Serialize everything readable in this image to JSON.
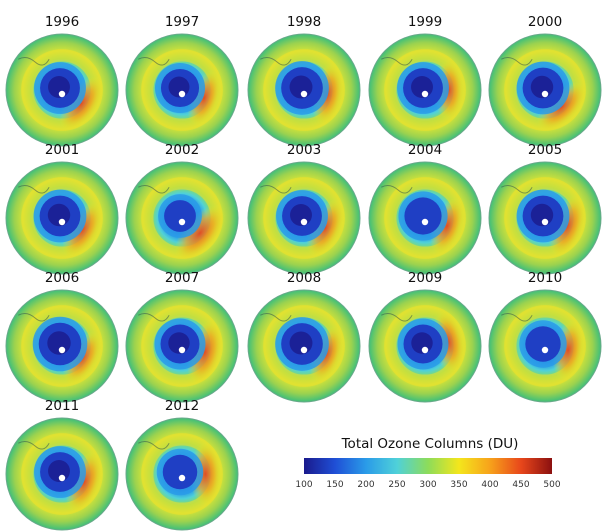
{
  "panels": [
    {
      "year": "1996",
      "hole": 0.85,
      "jet": 0.75,
      "jet_angle": 35
    },
    {
      "year": "1997",
      "hole": 0.75,
      "jet": 0.55,
      "jet_angle": 20
    },
    {
      "year": "1998",
      "hole": 0.95,
      "jet": 0.7,
      "jet_angle": 10
    },
    {
      "year": "1999",
      "hole": 0.85,
      "jet": 0.65,
      "jet_angle": 0
    },
    {
      "year": "2000",
      "hole": 0.9,
      "jet": 0.75,
      "jet_angle": 45
    },
    {
      "year": "2001",
      "hole": 0.9,
      "jet": 0.7,
      "jet_angle": 30
    },
    {
      "year": "2002",
      "hole": 0.4,
      "jet": 0.95,
      "jet_angle": 40
    },
    {
      "year": "2003",
      "hole": 0.85,
      "jet": 0.7,
      "jet_angle": 25
    },
    {
      "year": "2004",
      "hole": 0.7,
      "jet": 0.6,
      "jet_angle": 20
    },
    {
      "year": "2005",
      "hole": 0.9,
      "jet": 0.8,
      "jet_angle": 20
    },
    {
      "year": "2006",
      "hole": 1.0,
      "jet": 0.6,
      "jet_angle": 30
    },
    {
      "year": "2007",
      "hole": 0.8,
      "jet": 0.9,
      "jet_angle": 15
    },
    {
      "year": "2008",
      "hole": 0.95,
      "jet": 0.6,
      "jet_angle": 20
    },
    {
      "year": "2009",
      "hole": 0.8,
      "jet": 0.75,
      "jet_angle": -10
    },
    {
      "year": "2010",
      "hole": 0.6,
      "jet": 0.65,
      "jet_angle": 10
    },
    {
      "year": "2011",
      "hole": 0.85,
      "jet": 0.8,
      "jet_angle": 20
    },
    {
      "year": "2012",
      "hole": 0.55,
      "jet": 0.8,
      "jet_angle": 0
    }
  ],
  "legend": {
    "title": "Total Ozone Columns (DU)",
    "ticks": [
      "100",
      "150",
      "200",
      "250",
      "300",
      "350",
      "400",
      "450",
      "500"
    ],
    "colors": [
      "#1a1a8c",
      "#1f4fd6",
      "#2a9be8",
      "#4fd1d9",
      "#8ddc5a",
      "#f4e61c",
      "#f7a21b",
      "#e8471b",
      "#8b1010"
    ]
  }
}
